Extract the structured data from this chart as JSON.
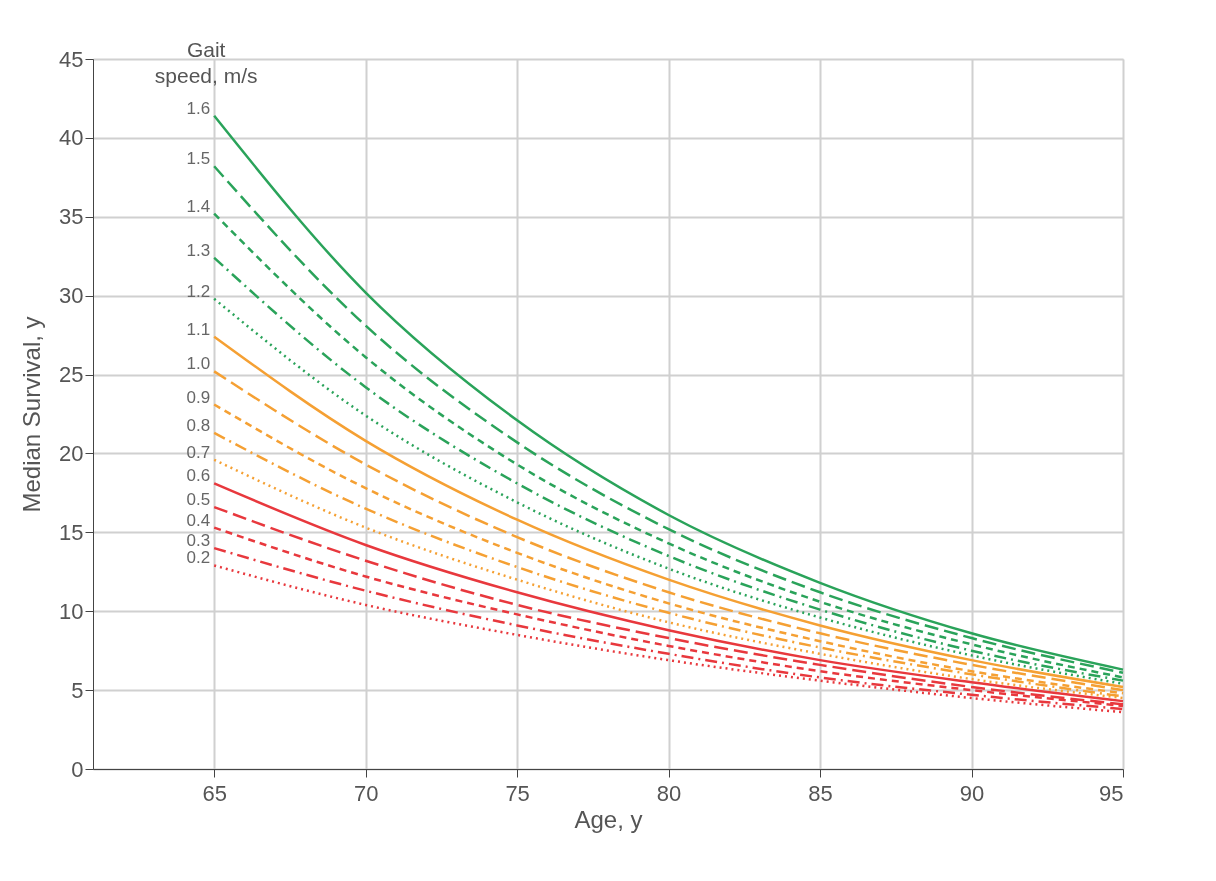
{
  "chart_data": {
    "type": "line",
    "xlabel": "Age, y",
    "ylabel": "Median Survival, y",
    "legend_title": "Gait\nspeed, m/s",
    "x": [
      65,
      70,
      75,
      80,
      85,
      90,
      95
    ],
    "xlim": [
      61,
      95
    ],
    "xticks": [
      65,
      70,
      75,
      80,
      85,
      90,
      95
    ],
    "ylim": [
      0,
      45
    ],
    "yticks": [
      0,
      5,
      10,
      15,
      20,
      25,
      30,
      35,
      40,
      45
    ],
    "grid": true,
    "marker": "none",
    "series": [
      {
        "name": "1.6",
        "color": "#2aa35a",
        "line_style": "solid",
        "values": [
          41.4,
          30.2,
          22.1,
          16.1,
          11.8,
          8.6,
          6.3
        ]
      },
      {
        "name": "1.5",
        "color": "#2aa35a",
        "line_style": "longdash",
        "values": [
          38.2,
          28.1,
          20.7,
          15.2,
          11.2,
          8.3,
          6.1
        ]
      },
      {
        "name": "1.4",
        "color": "#2aa35a",
        "line_style": "dashed",
        "values": [
          35.2,
          26.1,
          19.3,
          14.3,
          10.6,
          7.9,
          5.8
        ]
      },
      {
        "name": "1.3",
        "color": "#2aa35a",
        "line_style": "dashdot",
        "values": [
          32.4,
          24.2,
          18.1,
          13.5,
          10.1,
          7.5,
          5.6
        ]
      },
      {
        "name": "1.2",
        "color": "#2aa35a",
        "line_style": "dotted",
        "values": [
          29.8,
          22.4,
          16.9,
          12.7,
          9.6,
          7.2,
          5.4
        ]
      },
      {
        "name": "1.1",
        "color": "#f5a033",
        "line_style": "solid",
        "values": [
          27.4,
          20.8,
          15.8,
          12.0,
          9.1,
          6.9,
          5.2
        ]
      },
      {
        "name": "1.0",
        "color": "#f5a033",
        "line_style": "longdash",
        "values": [
          25.2,
          19.3,
          14.7,
          11.2,
          8.6,
          6.6,
          5.0
        ]
      },
      {
        "name": "0.9",
        "color": "#f5a033",
        "line_style": "dashed",
        "values": [
          23.1,
          17.8,
          13.7,
          10.5,
          8.1,
          6.2,
          4.8
        ]
      },
      {
        "name": "0.8",
        "color": "#f5a033",
        "line_style": "dashdot",
        "values": [
          21.3,
          16.5,
          12.8,
          9.9,
          7.7,
          6.0,
          4.6
        ]
      },
      {
        "name": "0.7",
        "color": "#f5a033",
        "line_style": "dotted",
        "values": [
          19.6,
          15.3,
          12.0,
          9.3,
          7.3,
          5.7,
          4.5
        ]
      },
      {
        "name": "0.6",
        "color": "#e8383d",
        "line_style": "solid",
        "values": [
          18.1,
          14.2,
          11.2,
          8.8,
          6.9,
          5.5,
          4.3
        ]
      },
      {
        "name": "0.5",
        "color": "#e8383d",
        "line_style": "longdash",
        "values": [
          16.6,
          13.2,
          10.4,
          8.3,
          6.6,
          5.2,
          4.1
        ]
      },
      {
        "name": "0.4",
        "color": "#e8383d",
        "line_style": "dashed",
        "values": [
          15.3,
          12.2,
          9.8,
          7.8,
          6.2,
          5.0,
          4.0
        ]
      },
      {
        "name": "0.3",
        "color": "#e8383d",
        "line_style": "dashdot",
        "values": [
          14.0,
          11.3,
          9.1,
          7.3,
          5.8,
          4.7,
          3.8
        ]
      },
      {
        "name": "0.2",
        "color": "#e8383d",
        "line_style": "dotted",
        "values": [
          12.9,
          10.4,
          8.5,
          6.9,
          5.6,
          4.5,
          3.6
        ]
      }
    ]
  }
}
